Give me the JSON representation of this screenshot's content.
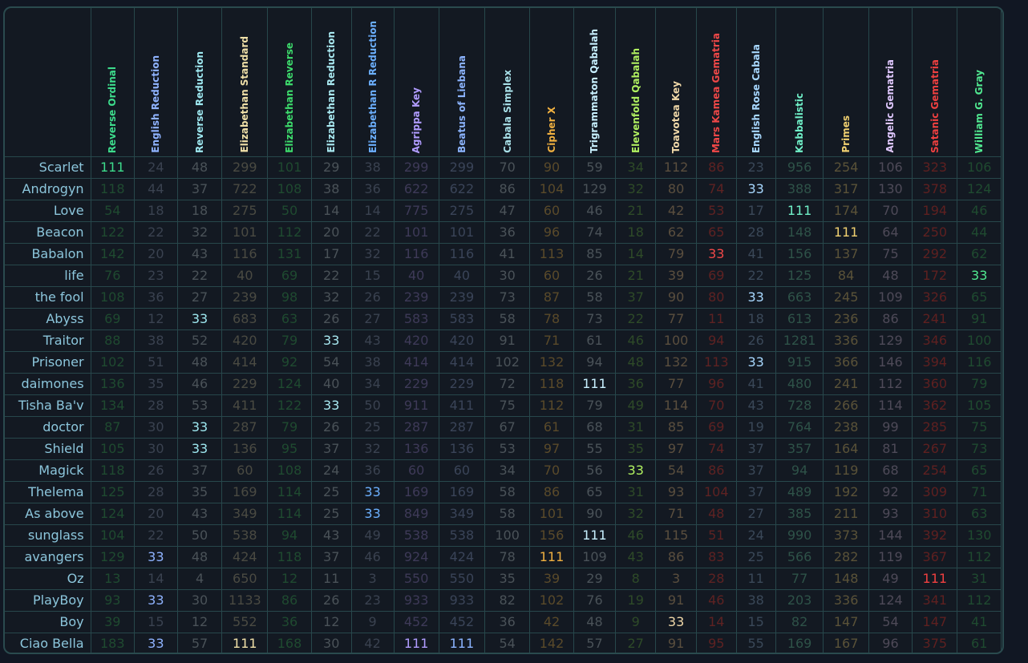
{
  "columns": [
    {
      "name": "Reverse Ordinal",
      "color": "#3ddc8c"
    },
    {
      "name": "English Reduction",
      "color": "#8fb3ff"
    },
    {
      "name": "Reverse Reduction",
      "color": "#9ee8f0"
    },
    {
      "name": "Elizabethan Standard",
      "color": "#f0e0a8"
    },
    {
      "name": "Elizabethan Reverse",
      "color": "#3ddc6c"
    },
    {
      "name": "Elizabethan Reduction",
      "color": "#a8e8f0"
    },
    {
      "name": "Elizabethan R Reduction",
      "color": "#6cb0ff"
    },
    {
      "name": "Agrippa Key",
      "color": "#b09cff"
    },
    {
      "name": "Beatus of Liebana",
      "color": "#8cb4ff"
    },
    {
      "name": "Cabala Simplex",
      "color": "#a8e0e8"
    },
    {
      "name": "Cipher X",
      "color": "#f0b040"
    },
    {
      "name": "Trigrammaton Qabalah",
      "color": "#c8f0ff"
    },
    {
      "name": "Elevenfold Qabalah",
      "color": "#b0f060"
    },
    {
      "name": "Toavotea Key",
      "color": "#f0d8a8"
    },
    {
      "name": "Mars Kamea Gematria",
      "color": "#f04848"
    },
    {
      "name": "English Rose Cabala",
      "color": "#a8d8ff"
    },
    {
      "name": "Kabbalistic",
      "color": "#70f0c8"
    },
    {
      "name": "Primes",
      "color": "#f0d070"
    },
    {
      "name": "Angelic Gematria",
      "color": "#e0c8ff"
    },
    {
      "name": "Satanic Gematria",
      "color": "#f04040"
    },
    {
      "name": "William G. Gray",
      "color": "#50e890"
    }
  ],
  "dim_colors": [
    "#1f4a30",
    "#3a4250",
    "#4a5258",
    "#4a4a42",
    "#1f4a30",
    "#4a5258",
    "#3a4250",
    "#3e3a58",
    "#3a4458",
    "#4a5258",
    "#5a4a2a",
    "#4a5258",
    "#2e4a28",
    "#5a4e3e",
    "#5e2222",
    "#3a4858",
    "#2e5248",
    "#5a5238",
    "#4e4a58",
    "#5e2020",
    "#1f4a30"
  ],
  "rows": [
    {
      "label": "Scarlet",
      "values": [
        "111",
        "24",
        "48",
        "299",
        "101",
        "29",
        "38",
        "299",
        "299",
        "70",
        "90",
        "59",
        "34",
        "112",
        "86",
        "23",
        "956",
        "254",
        "106",
        "323",
        "106"
      ]
    },
    {
      "label": "Androgyn",
      "values": [
        "118",
        "44",
        "37",
        "722",
        "108",
        "38",
        "36",
        "622",
        "622",
        "86",
        "104",
        "129",
        "32",
        "80",
        "74",
        "33",
        "388",
        "317",
        "130",
        "378",
        "124"
      ]
    },
    {
      "label": "Love",
      "values": [
        "54",
        "18",
        "18",
        "275",
        "50",
        "14",
        "14",
        "775",
        "275",
        "47",
        "60",
        "46",
        "21",
        "42",
        "53",
        "17",
        "111",
        "174",
        "70",
        "194",
        "46"
      ]
    },
    {
      "label": "Beacon",
      "values": [
        "122",
        "22",
        "32",
        "101",
        "112",
        "20",
        "22",
        "101",
        "101",
        "36",
        "96",
        "74",
        "18",
        "62",
        "65",
        "28",
        "148",
        "111",
        "64",
        "250",
        "44"
      ]
    },
    {
      "label": "Babalon",
      "values": [
        "142",
        "20",
        "43",
        "116",
        "131",
        "17",
        "32",
        "116",
        "116",
        "41",
        "113",
        "85",
        "14",
        "79",
        "33",
        "41",
        "156",
        "137",
        "75",
        "292",
        "62"
      ]
    },
    {
      "label": "life",
      "values": [
        "76",
        "23",
        "22",
        "40",
        "69",
        "22",
        "15",
        "40",
        "40",
        "30",
        "60",
        "26",
        "21",
        "39",
        "69",
        "22",
        "125",
        "84",
        "48",
        "172",
        "33"
      ]
    },
    {
      "label": "the fool",
      "values": [
        "108",
        "36",
        "27",
        "239",
        "98",
        "32",
        "26",
        "239",
        "239",
        "73",
        "87",
        "58",
        "37",
        "90",
        "80",
        "33",
        "663",
        "245",
        "109",
        "326",
        "65"
      ]
    },
    {
      "label": "Abyss",
      "values": [
        "69",
        "12",
        "33",
        "683",
        "63",
        "26",
        "27",
        "583",
        "583",
        "58",
        "78",
        "73",
        "22",
        "77",
        "11",
        "18",
        "613",
        "236",
        "86",
        "241",
        "91"
      ]
    },
    {
      "label": "Traitor",
      "values": [
        "88",
        "38",
        "52",
        "420",
        "79",
        "33",
        "43",
        "420",
        "420",
        "91",
        "71",
        "61",
        "46",
        "100",
        "94",
        "26",
        "1281",
        "336",
        "129",
        "346",
        "100"
      ]
    },
    {
      "label": "Prisoner",
      "values": [
        "102",
        "51",
        "48",
        "414",
        "92",
        "54",
        "38",
        "414",
        "414",
        "102",
        "132",
        "94",
        "48",
        "132",
        "113",
        "33",
        "915",
        "366",
        "146",
        "394",
        "116"
      ]
    },
    {
      "label": "daimones",
      "values": [
        "136",
        "35",
        "46",
        "229",
        "124",
        "40",
        "34",
        "229",
        "229",
        "72",
        "118",
        "111",
        "36",
        "77",
        "96",
        "41",
        "480",
        "241",
        "112",
        "360",
        "79"
      ]
    },
    {
      "label": "Tisha Ba'v",
      "values": [
        "134",
        "28",
        "53",
        "411",
        "122",
        "33",
        "50",
        "911",
        "411",
        "75",
        "112",
        "79",
        "49",
        "114",
        "70",
        "43",
        "728",
        "266",
        "114",
        "362",
        "105"
      ]
    },
    {
      "label": "doctor",
      "values": [
        "87",
        "30",
        "33",
        "287",
        "79",
        "26",
        "25",
        "287",
        "287",
        "67",
        "61",
        "68",
        "31",
        "85",
        "69",
        "19",
        "764",
        "238",
        "99",
        "285",
        "75"
      ]
    },
    {
      "label": "Shield",
      "values": [
        "105",
        "30",
        "33",
        "136",
        "95",
        "37",
        "32",
        "136",
        "136",
        "53",
        "97",
        "55",
        "35",
        "97",
        "74",
        "37",
        "357",
        "164",
        "81",
        "267",
        "73"
      ]
    },
    {
      "label": "Magick",
      "values": [
        "118",
        "26",
        "37",
        "60",
        "108",
        "24",
        "36",
        "60",
        "60",
        "34",
        "70",
        "56",
        "33",
        "54",
        "86",
        "37",
        "94",
        "119",
        "68",
        "254",
        "65"
      ]
    },
    {
      "label": "Thelema",
      "values": [
        "125",
        "28",
        "35",
        "169",
        "114",
        "25",
        "33",
        "169",
        "169",
        "58",
        "86",
        "65",
        "31",
        "93",
        "104",
        "37",
        "489",
        "192",
        "92",
        "309",
        "71"
      ]
    },
    {
      "label": "As above",
      "values": [
        "124",
        "20",
        "43",
        "349",
        "114",
        "25",
        "33",
        "849",
        "349",
        "58",
        "101",
        "90",
        "32",
        "71",
        "48",
        "27",
        "385",
        "211",
        "93",
        "310",
        "63"
      ]
    },
    {
      "label": "sunglass",
      "values": [
        "104",
        "22",
        "50",
        "538",
        "94",
        "43",
        "49",
        "538",
        "538",
        "100",
        "156",
        "111",
        "46",
        "115",
        "51",
        "24",
        "990",
        "373",
        "144",
        "392",
        "130"
      ]
    },
    {
      "label": "avangers",
      "values": [
        "129",
        "33",
        "48",
        "424",
        "118",
        "37",
        "46",
        "924",
        "424",
        "78",
        "111",
        "109",
        "43",
        "86",
        "83",
        "25",
        "566",
        "282",
        "119",
        "367",
        "112"
      ]
    },
    {
      "label": "Oz",
      "values": [
        "13",
        "14",
        "4",
        "650",
        "12",
        "11",
        "3",
        "550",
        "550",
        "35",
        "39",
        "29",
        "8",
        "3",
        "28",
        "11",
        "77",
        "148",
        "49",
        "111",
        "31"
      ]
    },
    {
      "label": "PlayBoy",
      "values": [
        "93",
        "33",
        "30",
        "1133",
        "86",
        "26",
        "23",
        "933",
        "933",
        "82",
        "102",
        "76",
        "19",
        "91",
        "46",
        "38",
        "203",
        "336",
        "124",
        "341",
        "112"
      ]
    },
    {
      "label": "Boy",
      "values": [
        "39",
        "15",
        "12",
        "552",
        "36",
        "12",
        "9",
        "452",
        "452",
        "36",
        "42",
        "48",
        "9",
        "33",
        "14",
        "15",
        "82",
        "147",
        "54",
        "147",
        "41"
      ]
    },
    {
      "label": "Ciao Bella",
      "values": [
        "183",
        "33",
        "57",
        "111",
        "168",
        "30",
        "42",
        "111",
        "111",
        "54",
        "142",
        "57",
        "27",
        "91",
        "95",
        "55",
        "169",
        "167",
        "96",
        "375",
        "61"
      ]
    }
  ],
  "highlights": [
    "111",
    "33"
  ]
}
